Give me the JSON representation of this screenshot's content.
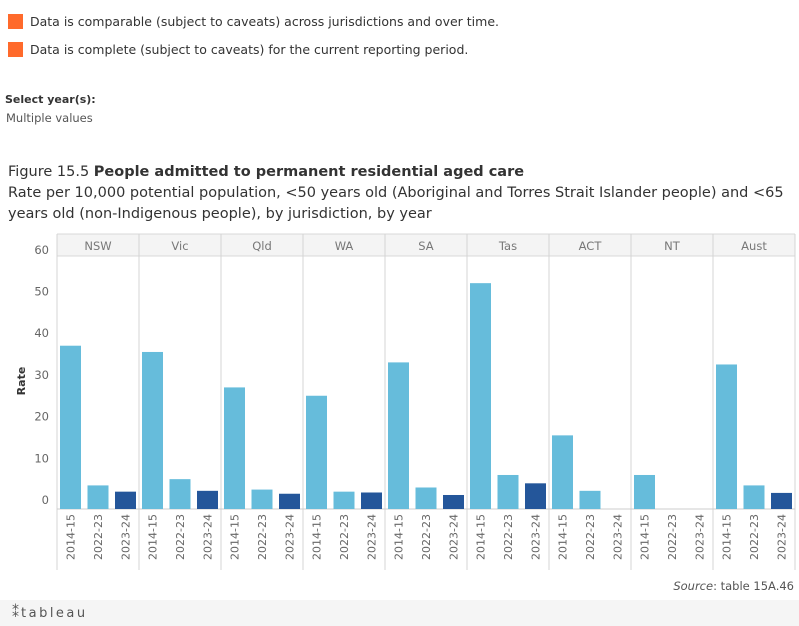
{
  "legend": {
    "items": [
      {
        "label": "Data is comparable (subject to caveats) across jurisdictions and over time.",
        "color": "#ff6a2b"
      },
      {
        "label": "Data is complete (subject to caveats) for the current reporting period.",
        "color": "#ff6a2b"
      }
    ]
  },
  "filter": {
    "label": "Select year(s):",
    "value": "Multiple values"
  },
  "figure": {
    "number": "Figure 15.5",
    "title": "People admitted to permanent residential aged care",
    "subtitle": "Rate per 10,000 potential population, <50 years old (Aboriginal and Torres Strait Islander people) and <65 years old (non-Indigenous people), by jurisdiction, by year"
  },
  "chart_data": {
    "type": "bar",
    "ylabel": "Rate",
    "ylim": [
      0,
      60
    ],
    "yticks": [
      0,
      10,
      20,
      30,
      40,
      50,
      60
    ],
    "grid": false,
    "categories": [
      "2014-15",
      "2022-23",
      "2023-24"
    ],
    "colors": {
      "2014-15": "#66bcdb",
      "2022-23": "#66bcdb",
      "2023-24": "#24569a"
    },
    "panels": [
      {
        "name": "NSW",
        "values": [
          37,
          3.5,
          2
        ]
      },
      {
        "name": "Vic",
        "values": [
          35.5,
          5,
          2.2
        ]
      },
      {
        "name": "Qld",
        "values": [
          27,
          2.5,
          1.5
        ]
      },
      {
        "name": "WA",
        "values": [
          25,
          2,
          1.8
        ]
      },
      {
        "name": "SA",
        "values": [
          33,
          3,
          1.2
        ]
      },
      {
        "name": "Tas",
        "values": [
          52,
          6,
          4
        ]
      },
      {
        "name": "ACT",
        "values": [
          15.5,
          2.2,
          null
        ]
      },
      {
        "name": "NT",
        "values": [
          6,
          null,
          null
        ]
      },
      {
        "name": "Aust",
        "values": [
          32.5,
          3.5,
          1.7
        ]
      }
    ]
  },
  "source": {
    "prefix": "Source",
    "text": ": table 15A.46"
  },
  "footer": {
    "logo": "tableau",
    "logo_mark": "⁑"
  }
}
